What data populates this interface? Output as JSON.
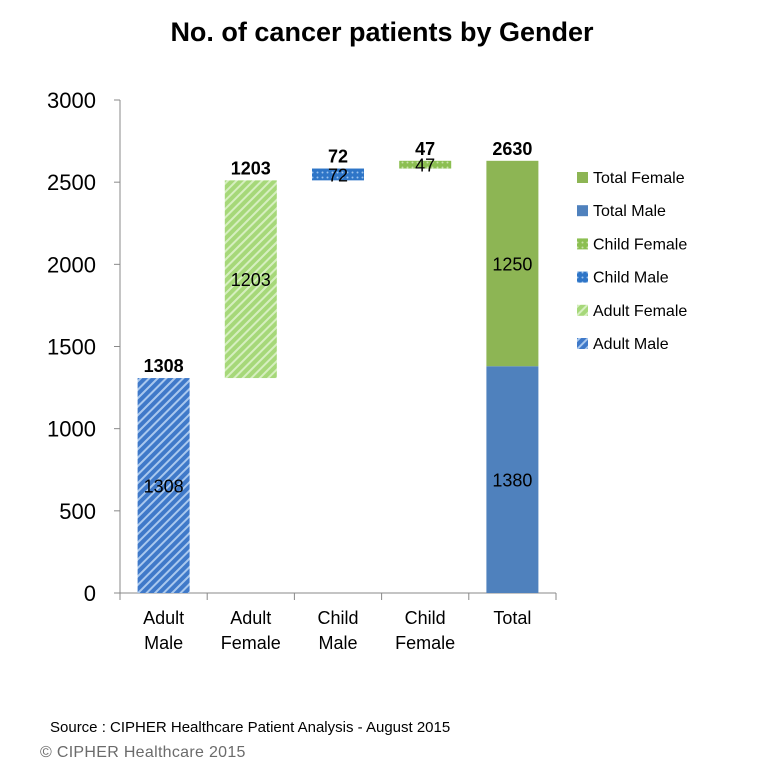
{
  "chart_data": {
    "type": "bar",
    "title": "No. of cancer patients by Gender",
    "xlabel": "",
    "ylabel": "",
    "ylim": [
      0,
      3000
    ],
    "yticks": [
      0,
      500,
      1000,
      1500,
      2000,
      2500,
      3000
    ],
    "categories": [
      [
        "Adult",
        "Male"
      ],
      [
        "Adult",
        "Female"
      ],
      [
        "Child",
        "Male"
      ],
      [
        "Child",
        "Female"
      ],
      [
        "Total"
      ]
    ],
    "series": [
      {
        "name": "Adult Male",
        "color": "#4f81bd",
        "pattern": "diag-dark",
        "values": [
          1308,
          0,
          0,
          0,
          0
        ],
        "base": [
          0,
          0,
          0,
          0,
          0
        ]
      },
      {
        "name": "Adult Female",
        "color": "#9bd46a",
        "pattern": "diag-light",
        "values": [
          0,
          1203,
          0,
          0,
          0
        ],
        "base": [
          0,
          1308,
          0,
          0,
          0
        ]
      },
      {
        "name": "Child Male",
        "color": "#2e75c7",
        "pattern": "dots",
        "values": [
          0,
          0,
          72,
          0,
          0
        ],
        "base": [
          0,
          0,
          2511,
          0,
          0
        ]
      },
      {
        "name": "Child Female",
        "color": "#8cbf52",
        "pattern": "dots",
        "values": [
          0,
          0,
          0,
          47,
          0
        ],
        "base": [
          0,
          0,
          0,
          2583,
          0
        ]
      },
      {
        "name": "Total Male",
        "color": "#4f81bd",
        "pattern": "solid",
        "values": [
          0,
          0,
          0,
          0,
          1380
        ],
        "base": [
          0,
          0,
          0,
          0,
          0
        ]
      },
      {
        "name": "Total Female",
        "color": "#8db554",
        "pattern": "solid",
        "values": [
          0,
          0,
          0,
          0,
          1250
        ],
        "base": [
          0,
          0,
          0,
          0,
          1380
        ]
      }
    ],
    "top_labels": [
      "1308",
      "1203",
      "72",
      "47",
      "2630"
    ],
    "inner_labels": [
      {
        "category": 0,
        "value": 1308,
        "text": "1308"
      },
      {
        "category": 1,
        "value": 1203,
        "text": "1203"
      },
      {
        "category": 2,
        "value": 72,
        "text": "72"
      },
      {
        "category": 3,
        "value": 47,
        "text": "47"
      },
      {
        "category": 4,
        "value": 1380,
        "text": "1380"
      },
      {
        "category": 4,
        "value": 1250,
        "text": "1250"
      }
    ],
    "legend": {
      "position": "right",
      "order": [
        "Total Female",
        "Total Male",
        "Child Female",
        "Child Male",
        "Adult Female",
        "Adult Male"
      ]
    },
    "grid": false
  },
  "footer": {
    "source": "Source : CIPHER Healthcare Patient Analysis -  August 2015",
    "copyright": "© CIPHER Healthcare 2015"
  }
}
